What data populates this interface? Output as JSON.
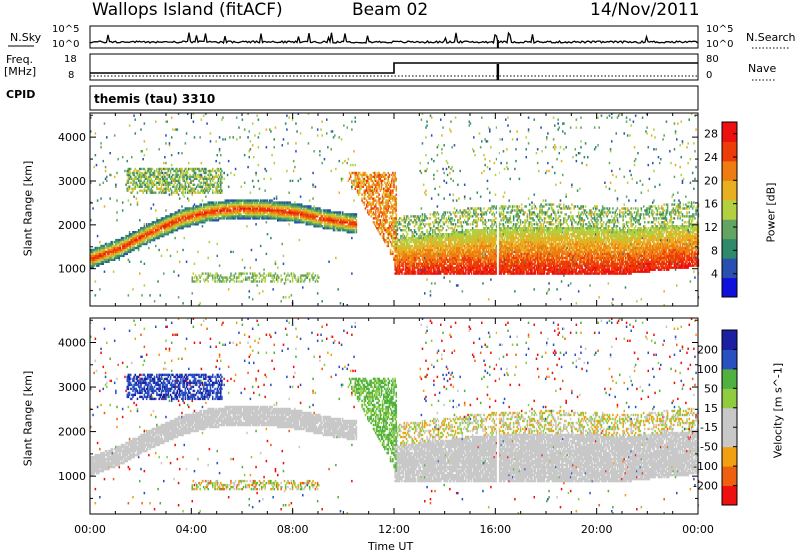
{
  "header": {
    "station": "Wallops Island (fitACF)",
    "beam": "Beam 02",
    "date": "14/Nov/2011"
  },
  "strip": {
    "nsky_label": "N.Sky",
    "nsky_ticks": [
      "10^5",
      "10^0"
    ],
    "nsearch_label": "N.Search",
    "nsearch_ticks": [
      "10^5",
      "10^0"
    ],
    "freq_label": "Freq.",
    "freq_unit": "[MHz]",
    "freq_ticks": [
      "18",
      "8"
    ],
    "nave_label": "Nave",
    "nave_ticks": [
      "80",
      "0"
    ],
    "cpid_label": "CPID",
    "cpid_text": "themis (tau) 3310"
  },
  "colors": {
    "power": [
      "#1010dd",
      "#2850b0",
      "#2e8a6a",
      "#62a462",
      "#b2d040",
      "#e8b020",
      "#ee7c10",
      "#ee3c08",
      "#ee1010"
    ],
    "velocity": [
      "#ee1010",
      "#ee6010",
      "#f0a010",
      "#c8c8c8",
      "#c8c8c8",
      "#90cc40",
      "#50b040",
      "#2850c0",
      "#1a20a0"
    ]
  },
  "chart_data": [
    {
      "type": "heatmap",
      "name": "power",
      "xlabel": "",
      "ylabel": "Slant Range [km]",
      "xlim": [
        "00:00",
        "24:00"
      ],
      "x_ticks": [
        "00:00",
        "04:00",
        "08:00",
        "12:00",
        "16:00",
        "20:00",
        "00:00"
      ],
      "ylim": [
        150,
        4550
      ],
      "y_ticks": [
        1000,
        2000,
        3000,
        4000
      ],
      "colorbar_label": "Power [dB]",
      "colorbar_ticks": [
        4,
        8,
        12,
        16,
        20,
        24,
        28
      ],
      "colorbar_range": [
        0,
        30
      ],
      "features": [
        {
          "label": "ground scatter band",
          "x": [
            "00:00",
            "10:30"
          ],
          "center_km": [
            1200,
            1450,
            1800,
            2100,
            2280,
            2350,
            2330,
            2250,
            2100,
            2000
          ],
          "peak_db": 26
        },
        {
          "label": "ionospheric patch",
          "x": [
            "02:00",
            "05:00"
          ],
          "range_km": [
            2800,
            3200
          ],
          "peak_db": 16
        },
        {
          "label": "near range echoes",
          "x": [
            "04:00",
            "09:00"
          ],
          "range_km": [
            700,
            850
          ],
          "peak_db": 14
        },
        {
          "label": "dusk transition",
          "x": [
            "10:30",
            "12:00"
          ],
          "range_km": [
            900,
            3100
          ],
          "peak_db": 22
        },
        {
          "label": "night ground scatter",
          "x": [
            "12:00",
            "24:00"
          ],
          "range_km": [
            850,
            1800
          ],
          "peak_db": 27
        }
      ]
    },
    {
      "type": "heatmap",
      "name": "velocity",
      "xlabel": "Time UT",
      "ylabel": "Slant Range [km]",
      "xlim": [
        "00:00",
        "24:00"
      ],
      "x_ticks": [
        "00:00",
        "04:00",
        "08:00",
        "12:00",
        "16:00",
        "20:00",
        "00:00"
      ],
      "ylim": [
        150,
        4550
      ],
      "y_ticks": [
        1000,
        2000,
        3000,
        4000
      ],
      "colorbar_label": "Velocity [m s^-1]",
      "colorbar_ticks": [
        "200",
        "100",
        "50",
        "15",
        "-15",
        "-50",
        "-100",
        "-200"
      ],
      "features": [
        {
          "label": "westward flow patch",
          "x": [
            "01:00",
            "05:00"
          ],
          "range_km": [
            2800,
            3200
          ],
          "velocity": 200
        },
        {
          "label": "ground scatter",
          "x": [
            "00:00",
            "24:00"
          ],
          "velocity": 0
        },
        {
          "label": "transition streak",
          "x": [
            "11:00",
            "12:00"
          ],
          "range_km": [
            1000,
            3000
          ],
          "velocity": 60
        }
      ]
    }
  ]
}
